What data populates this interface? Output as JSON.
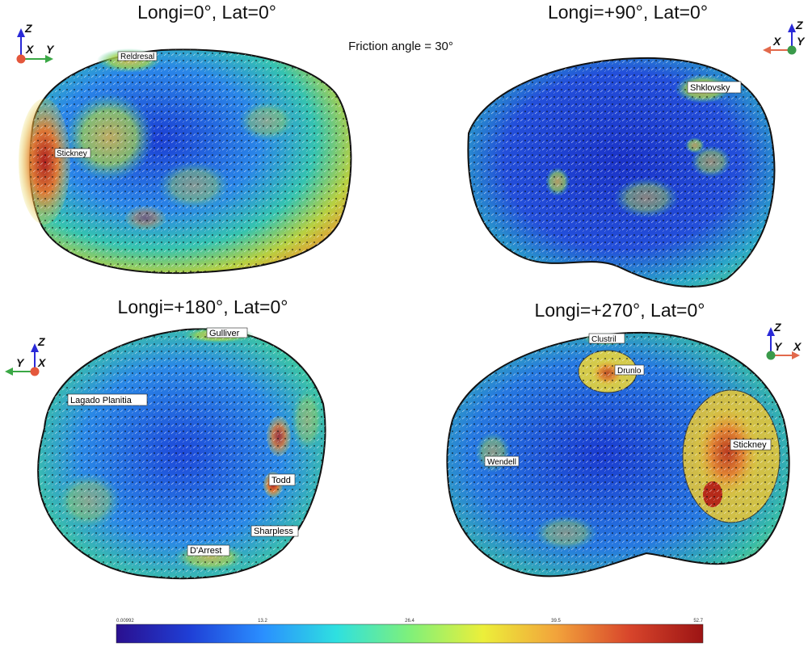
{
  "header": {
    "friction_label": "Friction angle = 30°"
  },
  "views": [
    {
      "title": "Longi=0°, Lat=0°",
      "axes": {
        "up": "Z",
        "left": "X",
        "right": "Y"
      },
      "craters": [
        "Reldresal",
        "Stickney"
      ]
    },
    {
      "title": "Longi=+90°, Lat=0°",
      "axes": {
        "up": "Z",
        "left": "X",
        "right": "Y"
      },
      "craters": [
        "Shklovsky"
      ]
    },
    {
      "title": "Longi=+180°, Lat=0°",
      "axes": {
        "up": "Z",
        "left": "Y",
        "right": "X"
      },
      "craters": [
        "Gulliver",
        "Lagado Planitia",
        "Todd",
        "Sharpless",
        "D'Arrest"
      ]
    },
    {
      "title": "Longi=+270°, Lat=0°",
      "axes": {
        "up": "Z",
        "left": "Y",
        "right": "X"
      },
      "craters": [
        "Clustril",
        "Drunlo",
        "Stickney",
        "Wendell"
      ]
    }
  ],
  "colorbar": {
    "ticks": [
      "0.00992",
      "13.2",
      "26.4",
      "39.5",
      "52.7"
    ],
    "stops": [
      "#2a0f8f",
      "#1f3fd6",
      "#2a8fff",
      "#2ee0e0",
      "#7ff07a",
      "#ecef3a",
      "#f2a33b",
      "#d8452b",
      "#9c1414"
    ]
  },
  "colors": {
    "axis_z": "#2a2ad8",
    "axis_y": "#3aa845",
    "axis_x": "#e2694b",
    "origin_red": "#e4573c",
    "origin_green": "#3a9a4a"
  }
}
